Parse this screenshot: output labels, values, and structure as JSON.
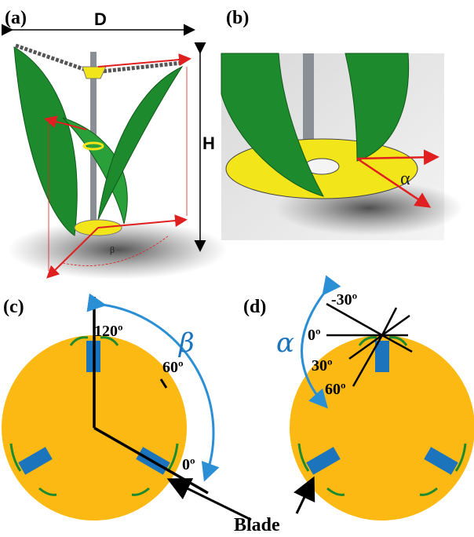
{
  "panels": {
    "a": {
      "label": "(a)",
      "dim_d": "D",
      "dim_h": "H",
      "angle_symbol": "β"
    },
    "b": {
      "label": "(b)",
      "angle_symbol": "α"
    },
    "c": {
      "label": "(c)",
      "angle_symbol": "β",
      "angles": [
        "120º",
        "60º",
        "0º"
      ]
    },
    "d": {
      "label": "(d)",
      "angle_symbol": "α",
      "angles": [
        "-30º",
        "0º",
        "30º",
        "60º"
      ]
    }
  },
  "blade_label": "Blade",
  "colors": {
    "rotor_disc": "#FDB913",
    "blade_root": "#1C75BC",
    "blade_green": "#1E8A2E",
    "arc_blue": "#2B8FD6",
    "arrow_red": "#E02020",
    "support_yellow": "#F2E51A"
  }
}
